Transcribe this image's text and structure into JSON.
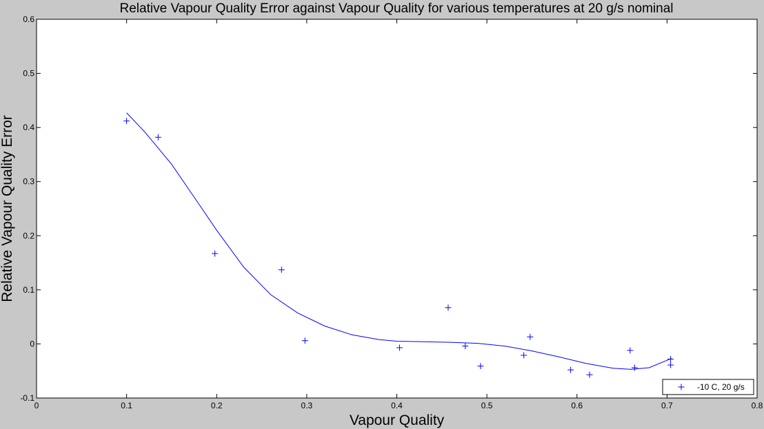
{
  "chart_data": {
    "type": "scatter",
    "title": "Relative Vapour Quality Error against Vapour Quality for various temperatures at 20 g/s nominal",
    "xlabel": "Vapour Quality",
    "ylabel": "Relative Vapour Quality Error",
    "xlim": [
      0,
      0.8
    ],
    "ylim": [
      -0.1,
      0.6
    ],
    "xticks": [
      0,
      0.1,
      0.2,
      0.3,
      0.4,
      0.5,
      0.6,
      0.7,
      0.8
    ],
    "yticks": [
      -0.1,
      0,
      0.1,
      0.2,
      0.3,
      0.4,
      0.5,
      0.6
    ],
    "xtick_labels": [
      "0",
      "0.1",
      "0.2",
      "0.3",
      "0.4",
      "0.5",
      "0.6",
      "0.7",
      "0.8"
    ],
    "ytick_labels": [
      "-0.1",
      "0",
      "0.1",
      "0.2",
      "0.3",
      "0.4",
      "0.5",
      "0.6"
    ],
    "grid": false,
    "legend_position": "bottom-right",
    "series": [
      {
        "name": "-10 C, 20 g/s",
        "type": "scatter",
        "marker": "+",
        "color": "#0000ff",
        "points": [
          [
            0.1,
            0.412
          ],
          [
            0.135,
            0.382
          ],
          [
            0.198,
            0.167
          ],
          [
            0.272,
            0.137
          ],
          [
            0.298,
            0.006
          ],
          [
            0.403,
            -0.007
          ],
          [
            0.457,
            0.067
          ],
          [
            0.476,
            -0.004
          ],
          [
            0.493,
            -0.041
          ],
          [
            0.541,
            -0.021
          ],
          [
            0.548,
            0.013
          ],
          [
            0.593,
            -0.048
          ],
          [
            0.614,
            -0.057
          ],
          [
            0.659,
            -0.012
          ],
          [
            0.664,
            -0.044
          ],
          [
            0.704,
            -0.028
          ],
          [
            0.704,
            -0.039
          ]
        ]
      },
      {
        "type": "line",
        "color": "#0000ff",
        "points": [
          [
            0.1,
            0.427
          ],
          [
            0.12,
            0.392
          ],
          [
            0.15,
            0.332
          ],
          [
            0.18,
            0.259
          ],
          [
            0.2,
            0.21
          ],
          [
            0.23,
            0.142
          ],
          [
            0.26,
            0.091
          ],
          [
            0.29,
            0.057
          ],
          [
            0.32,
            0.033
          ],
          [
            0.35,
            0.017
          ],
          [
            0.38,
            0.008
          ],
          [
            0.4,
            0.005
          ],
          [
            0.43,
            0.004
          ],
          [
            0.46,
            0.003
          ],
          [
            0.49,
            0.001
          ],
          [
            0.52,
            -0.004
          ],
          [
            0.55,
            -0.013
          ],
          [
            0.58,
            -0.024
          ],
          [
            0.61,
            -0.036
          ],
          [
            0.64,
            -0.045
          ],
          [
            0.66,
            -0.047
          ],
          [
            0.68,
            -0.044
          ],
          [
            0.705,
            -0.027
          ]
        ]
      }
    ]
  }
}
